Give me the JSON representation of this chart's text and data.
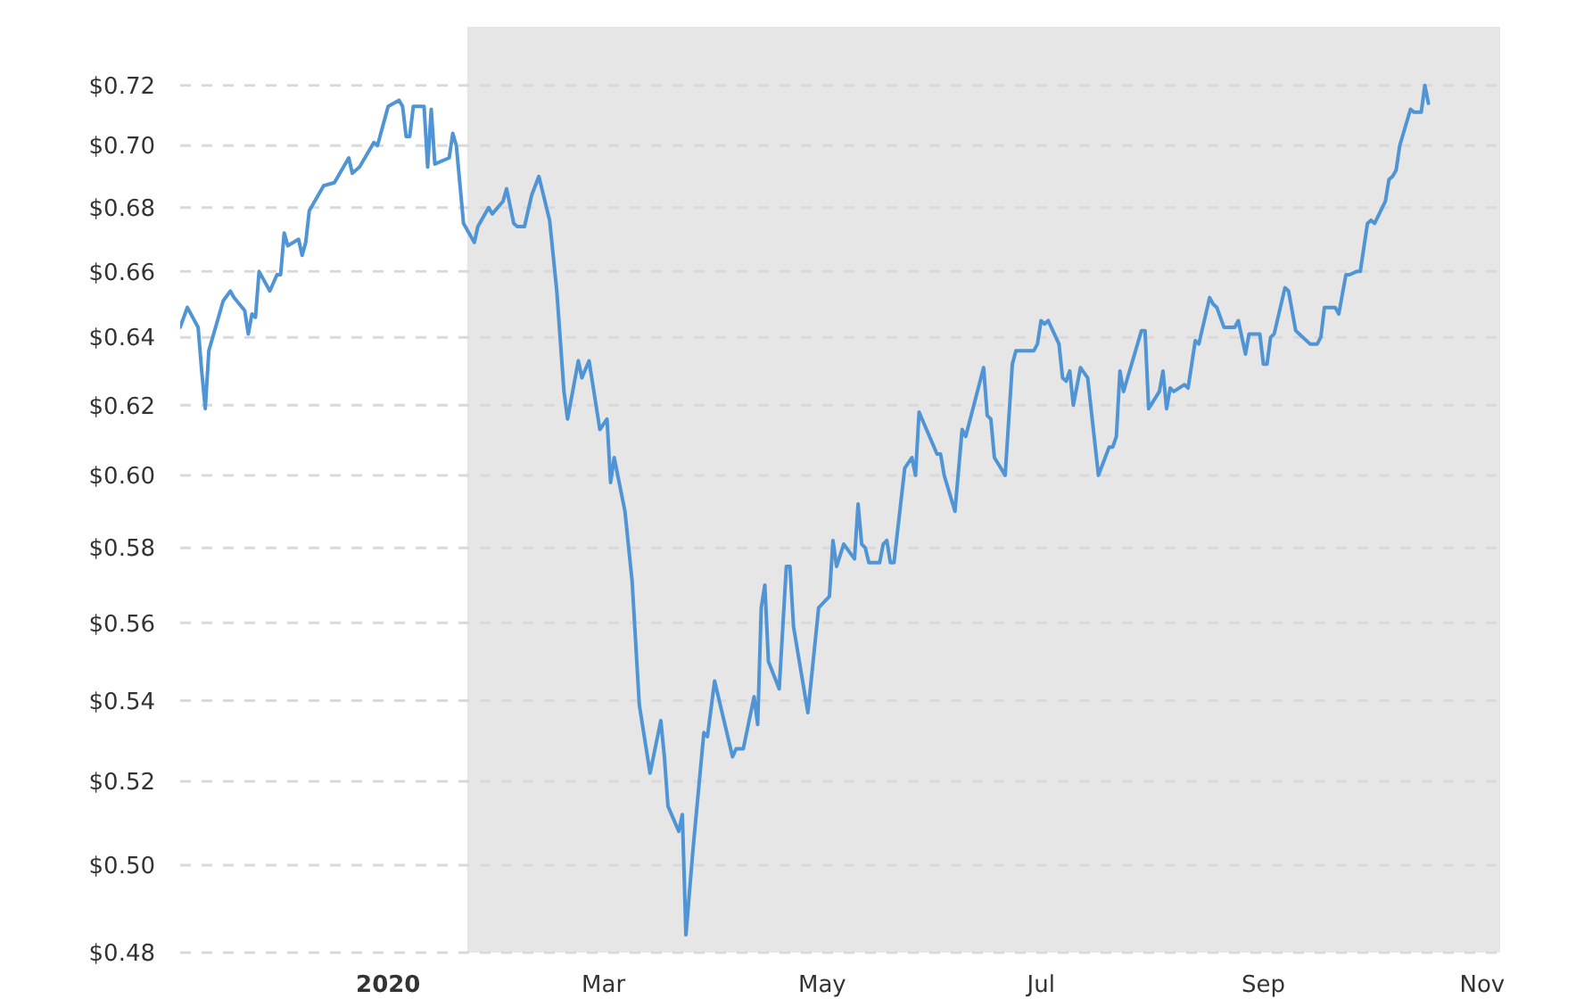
{
  "chart_data": {
    "type": "line",
    "color": "#4f94d4",
    "marker": "none",
    "line_style": "solid",
    "grid": "y",
    "log": true,
    "xlim": [
      "2019-11-04",
      "2020-11-06"
    ],
    "xticks": [
      {
        "value": "2020-01-01",
        "label": "2020"
      },
      {
        "value": "2020-03-01",
        "label": "Mar"
      },
      {
        "value": "2020-05-01",
        "label": "May"
      },
      {
        "value": "2020-07-01",
        "label": "Jul"
      },
      {
        "value": "2020-09-01",
        "label": "Sep"
      },
      {
        "value": "2020-11-01",
        "label": "Nov"
      }
    ],
    "ylim": [
      0.48,
      0.74
    ],
    "yticks": [
      {
        "value": 0.48,
        "label": "$0.48"
      },
      {
        "value": 0.5,
        "label": "$0.50"
      },
      {
        "value": 0.52,
        "label": "$0.52"
      },
      {
        "value": 0.54,
        "label": "$0.54"
      },
      {
        "value": 0.56,
        "label": "$0.56"
      },
      {
        "value": 0.58,
        "label": "$0.58"
      },
      {
        "value": 0.6,
        "label": "$0.60"
      },
      {
        "value": 0.62,
        "label": "$0.62"
      },
      {
        "value": 0.64,
        "label": "$0.64"
      },
      {
        "value": 0.66,
        "label": "$0.66"
      },
      {
        "value": 0.68,
        "label": "$0.68"
      },
      {
        "value": 0.7,
        "label": "$0.70"
      },
      {
        "value": 0.72,
        "label": "$0.72"
      }
    ],
    "bands": [
      {
        "axis": "x",
        "from": "2020-01-23",
        "to": "2020-11-06",
        "color": "#e6e6e6"
      }
    ],
    "x": [
      "2019-11-04",
      "2019-11-06",
      "2019-11-09",
      "2019-11-10",
      "2019-11-11",
      "2019-11-12",
      "2019-11-16",
      "2019-11-18",
      "2019-11-19",
      "2019-11-22",
      "2019-11-23",
      "2019-11-24",
      "2019-11-25",
      "2019-11-26",
      "2019-11-29",
      "2019-12-01",
      "2019-12-02",
      "2019-12-03",
      "2019-12-04",
      "2019-12-07",
      "2019-12-08",
      "2019-12-09",
      "2019-12-10",
      "2019-12-14",
      "2019-12-17",
      "2019-12-21",
      "2019-12-22",
      "2019-12-24",
      "2019-12-28",
      "2019-12-29",
      "2020-01-01",
      "2020-01-04",
      "2020-01-05",
      "2020-01-06",
      "2020-01-07",
      "2020-01-08",
      "2020-01-11",
      "2020-01-12",
      "2020-01-13",
      "2020-01-14",
      "2020-01-18",
      "2020-01-19",
      "2020-01-20",
      "2020-01-22",
      "2020-01-25",
      "2020-01-26",
      "2020-01-29",
      "2020-01-30",
      "2020-02-02",
      "2020-02-03",
      "2020-02-05",
      "2020-02-06",
      "2020-02-08",
      "2020-02-10",
      "2020-02-12",
      "2020-02-15",
      "2020-02-17",
      "2020-02-19",
      "2020-02-20",
      "2020-02-23",
      "2020-02-24",
      "2020-02-26",
      "2020-02-29",
      "2020-03-02",
      "2020-03-03",
      "2020-03-04",
      "2020-03-07",
      "2020-03-09",
      "2020-03-11",
      "2020-03-14",
      "2020-03-17",
      "2020-03-18",
      "2020-03-19",
      "2020-03-22",
      "2020-03-23",
      "2020-03-24",
      "2020-03-26",
      "2020-03-29",
      "2020-03-30",
      "2020-04-01",
      "2020-04-06",
      "2020-04-07",
      "2020-04-09",
      "2020-04-12",
      "2020-04-13",
      "2020-04-14",
      "2020-04-15",
      "2020-04-16",
      "2020-04-19",
      "2020-04-21",
      "2020-04-22",
      "2020-04-23",
      "2020-04-27",
      "2020-04-30",
      "2020-05-03",
      "2020-05-04",
      "2020-05-05",
      "2020-05-07",
      "2020-05-10",
      "2020-05-11",
      "2020-05-12",
      "2020-05-13",
      "2020-05-14",
      "2020-05-17",
      "2020-05-18",
      "2020-05-19",
      "2020-05-20",
      "2020-05-21",
      "2020-05-24",
      "2020-05-26",
      "2020-05-27",
      "2020-05-28",
      "2020-06-02",
      "2020-06-03",
      "2020-06-04",
      "2020-06-07",
      "2020-06-09",
      "2020-06-10",
      "2020-06-15",
      "2020-06-16",
      "2020-06-17",
      "2020-06-18",
      "2020-06-21",
      "2020-06-23",
      "2020-06-24",
      "2020-06-29",
      "2020-06-30",
      "2020-07-01",
      "2020-07-02",
      "2020-07-03",
      "2020-07-06",
      "2020-07-07",
      "2020-07-08",
      "2020-07-09",
      "2020-07-10",
      "2020-07-12",
      "2020-07-14",
      "2020-07-17",
      "2020-07-20",
      "2020-07-21",
      "2020-07-22",
      "2020-07-23",
      "2020-07-24",
      "2020-07-29",
      "2020-07-30",
      "2020-07-31",
      "2020-08-03",
      "2020-08-04",
      "2020-08-05",
      "2020-08-06",
      "2020-08-07",
      "2020-08-10",
      "2020-08-11",
      "2020-08-13",
      "2020-08-14",
      "2020-08-17",
      "2020-08-18",
      "2020-08-19",
      "2020-08-21",
      "2020-08-24",
      "2020-08-25",
      "2020-08-27",
      "2020-08-28",
      "2020-08-31",
      "2020-09-01",
      "2020-09-02",
      "2020-09-03",
      "2020-09-04",
      "2020-09-07",
      "2020-09-08",
      "2020-09-10",
      "2020-09-14",
      "2020-09-15",
      "2020-09-16",
      "2020-09-17",
      "2020-09-18",
      "2020-09-21",
      "2020-09-22",
      "2020-09-24",
      "2020-09-25",
      "2020-09-27",
      "2020-09-28",
      "2020-09-30",
      "2020-10-01",
      "2020-10-02",
      "2020-10-05",
      "2020-10-06",
      "2020-10-07",
      "2020-10-08",
      "2020-10-09",
      "2020-10-12",
      "2020-10-13",
      "2020-10-15",
      "2020-10-16",
      "2020-10-17"
    ],
    "values": [
      0.643,
      0.649,
      0.643,
      0.63,
      0.619,
      0.636,
      0.651,
      0.654,
      0.652,
      0.648,
      0.641,
      0.647,
      0.646,
      0.66,
      0.654,
      0.659,
      0.659,
      0.672,
      0.668,
      0.67,
      0.665,
      0.669,
      0.679,
      0.687,
      0.688,
      0.696,
      0.691,
      0.693,
      0.701,
      0.7,
      0.713,
      0.715,
      0.713,
      0.703,
      0.703,
      0.713,
      0.713,
      0.693,
      0.712,
      0.694,
      0.696,
      0.704,
      0.7,
      0.675,
      0.669,
      0.674,
      0.68,
      0.678,
      0.682,
      0.686,
      0.675,
      0.674,
      0.674,
      0.684,
      0.69,
      0.676,
      0.654,
      0.624,
      0.616,
      0.633,
      0.628,
      0.633,
      0.613,
      0.616,
      0.598,
      0.605,
      0.59,
      0.571,
      0.539,
      0.522,
      0.535,
      0.526,
      0.514,
      0.508,
      0.512,
      0.484,
      0.504,
      0.532,
      0.531,
      0.545,
      0.526,
      0.528,
      0.528,
      0.541,
      0.534,
      0.564,
      0.57,
      0.55,
      0.543,
      0.575,
      0.575,
      0.559,
      0.537,
      0.564,
      0.567,
      0.582,
      0.575,
      0.581,
      0.577,
      0.592,
      0.581,
      0.58,
      0.576,
      0.576,
      0.581,
      0.582,
      0.576,
      0.576,
      0.602,
      0.605,
      0.6,
      0.618,
      0.606,
      0.606,
      0.6,
      0.59,
      0.613,
      0.611,
      0.631,
      0.617,
      0.616,
      0.605,
      0.6,
      0.632,
      0.636,
      0.636,
      0.638,
      0.645,
      0.644,
      0.645,
      0.638,
      0.628,
      0.627,
      0.63,
      0.62,
      0.631,
      0.628,
      0.6,
      0.608,
      0.608,
      0.611,
      0.63,
      0.624,
      0.642,
      0.642,
      0.619,
      0.624,
      0.63,
      0.619,
      0.625,
      0.624,
      0.626,
      0.625,
      0.639,
      0.638,
      0.652,
      0.65,
      0.649,
      0.643,
      0.643,
      0.645,
      0.635,
      0.641,
      0.641,
      0.632,
      0.632,
      0.64,
      0.641,
      0.655,
      0.654,
      0.642,
      0.638,
      0.638,
      0.638,
      0.64,
      0.649,
      0.649,
      0.647,
      0.659,
      0.659,
      0.66,
      0.66,
      0.675,
      0.676,
      0.675,
      0.682,
      0.689,
      0.69,
      0.692,
      0.7,
      0.712,
      0.711,
      0.711,
      0.72,
      0.714
    ]
  }
}
